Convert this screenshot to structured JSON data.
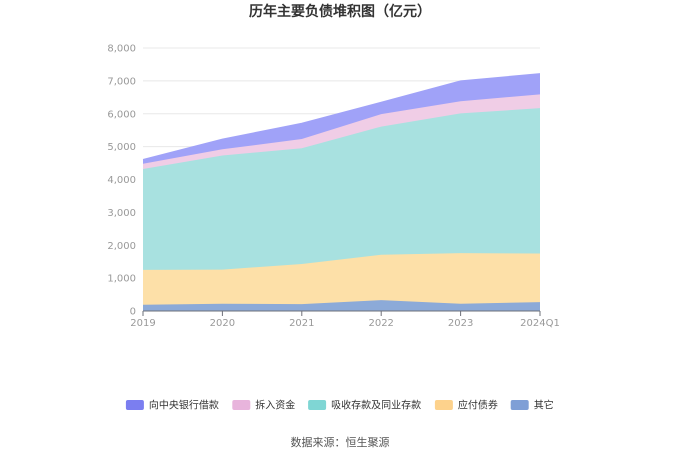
{
  "chart_data": {
    "type": "area",
    "stacked": true,
    "title": "历年主要负债堆积图（亿元）",
    "source": "数据来源：恒生聚源",
    "categories": [
      "2019",
      "2020",
      "2021",
      "2022",
      "2023",
      "2024Q1"
    ],
    "y_ticks": [
      "0",
      "1,000",
      "2,000",
      "3,000",
      "4,000",
      "5,000",
      "6,000",
      "7,000",
      "8,000"
    ],
    "ylim": [
      0,
      8000
    ],
    "grid": true,
    "legend_position": "bottom",
    "series": [
      {
        "name": "其它",
        "color": "#8caad8",
        "values": [
          190,
          220,
          210,
          330,
          220,
          270
        ]
      },
      {
        "name": "应付债券",
        "color": "#fde0a8",
        "values": [
          1060,
          1040,
          1220,
          1380,
          1540,
          1480
        ]
      },
      {
        "name": "吸收存款及同业存款",
        "color": "#a8e1e0",
        "values": [
          3070,
          3470,
          3520,
          3900,
          4250,
          4420
        ]
      },
      {
        "name": "拆入资金",
        "color": "#f0cde6",
        "values": [
          160,
          190,
          280,
          380,
          370,
          420
        ]
      },
      {
        "name": "向中央银行借款",
        "color": "#a0a2f8",
        "values": [
          130,
          310,
          480,
          360,
          620,
          630
        ]
      }
    ],
    "legend_order": [
      "向中央银行借款",
      "拆入资金",
      "吸收存款及同业存款",
      "应付债券",
      "其它"
    ],
    "legend_swatch_colors": {
      "向中央银行借款": "#7b7ef0",
      "拆入资金": "#e8b4dc",
      "吸收存款及同业存款": "#7fd6d4",
      "应付债券": "#fdd28c",
      "其它": "#7f9fd6"
    }
  }
}
